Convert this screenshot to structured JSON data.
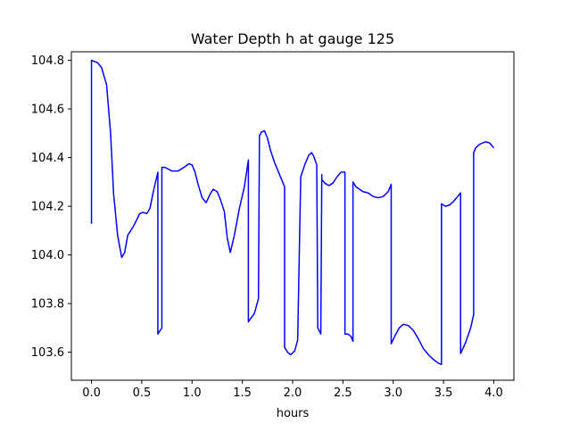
{
  "chart_data": {
    "type": "line",
    "title": "Water Depth h at gauge 125",
    "xlabel": "hours",
    "ylabel": "",
    "xlim": [
      -0.2,
      4.2
    ],
    "ylim": [
      103.485,
      104.835
    ],
    "x_ticks": [
      0.0,
      0.5,
      1.0,
      1.5,
      2.0,
      2.5,
      3.0,
      3.5,
      4.0
    ],
    "x_tick_labels": [
      "0.0",
      "0.5",
      "1.0",
      "1.5",
      "2.0",
      "2.5",
      "3.0",
      "3.5",
      "4.0"
    ],
    "y_ticks": [
      103.6,
      103.8,
      104.0,
      104.2,
      104.4,
      104.6,
      104.8
    ],
    "y_tick_labels": [
      "103.6",
      "103.8",
      "104.0",
      "104.2",
      "104.4",
      "104.6",
      "104.8"
    ],
    "grid": false,
    "line_color": "#0000ff",
    "series": [
      {
        "x": [
          0.0,
          0.0,
          0.0,
          0.06,
          0.1,
          0.15,
          0.19,
          0.22,
          0.26,
          0.3,
          0.33,
          0.36,
          0.42,
          0.48,
          0.51,
          0.55,
          0.58,
          0.62,
          0.66,
          0.66,
          0.7,
          0.7,
          0.73,
          0.8,
          0.86,
          0.92,
          0.97,
          1.0,
          1.03,
          1.06,
          1.1,
          1.14,
          1.18,
          1.21,
          1.25,
          1.28,
          1.32,
          1.35,
          1.38,
          1.42,
          1.47,
          1.52,
          1.56,
          1.56,
          1.62,
          1.66,
          1.67,
          1.69,
          1.72,
          1.75,
          1.78,
          1.82,
          1.86,
          1.91,
          1.92,
          1.92,
          1.95,
          1.98,
          2.02,
          2.05,
          2.08,
          2.08,
          2.12,
          2.16,
          2.19,
          2.21,
          2.24,
          2.25,
          2.28,
          2.29,
          2.29,
          2.32,
          2.36,
          2.4,
          2.44,
          2.48,
          2.52,
          2.52,
          2.55,
          2.58,
          2.6,
          2.6,
          2.63,
          2.7,
          2.75,
          2.8,
          2.85,
          2.9,
          2.95,
          2.98,
          2.98,
          3.02,
          3.06,
          3.1,
          3.15,
          3.2,
          3.25,
          3.3,
          3.35,
          3.4,
          3.45,
          3.48,
          3.48,
          3.52,
          3.56,
          3.6,
          3.64,
          3.67,
          3.67,
          3.72,
          3.77,
          3.8,
          3.8,
          3.82,
          3.86,
          3.92,
          3.96,
          4.0
        ],
        "y": [
          104.34,
          104.13,
          104.8,
          104.79,
          104.77,
          104.7,
          104.5,
          104.25,
          104.08,
          103.99,
          104.01,
          104.08,
          104.12,
          104.17,
          104.175,
          104.17,
          104.19,
          104.27,
          104.34,
          103.675,
          103.7,
          104.36,
          104.36,
          104.345,
          104.345,
          104.36,
          104.375,
          104.37,
          104.34,
          104.29,
          104.235,
          104.215,
          104.25,
          104.27,
          104.26,
          104.23,
          104.18,
          104.07,
          104.01,
          104.08,
          104.19,
          104.28,
          104.39,
          103.725,
          103.76,
          103.82,
          104.49,
          104.505,
          104.51,
          104.48,
          104.43,
          104.38,
          104.34,
          104.29,
          104.28,
          103.62,
          103.6,
          103.59,
          103.605,
          103.65,
          104.31,
          104.32,
          104.37,
          104.41,
          104.42,
          104.405,
          104.37,
          103.7,
          103.675,
          104.33,
          104.31,
          104.295,
          104.285,
          104.295,
          104.32,
          104.34,
          104.34,
          103.675,
          103.675,
          103.665,
          103.645,
          104.3,
          104.28,
          104.26,
          104.255,
          104.24,
          104.235,
          104.24,
          104.26,
          104.29,
          103.635,
          103.67,
          103.7,
          103.715,
          103.71,
          103.69,
          103.655,
          103.615,
          103.59,
          103.57,
          103.555,
          103.55,
          104.21,
          104.2,
          104.205,
          104.22,
          104.24,
          104.255,
          103.595,
          103.64,
          103.7,
          103.755,
          104.42,
          104.44,
          104.455,
          104.465,
          104.46,
          104.44
        ]
      }
    ]
  }
}
